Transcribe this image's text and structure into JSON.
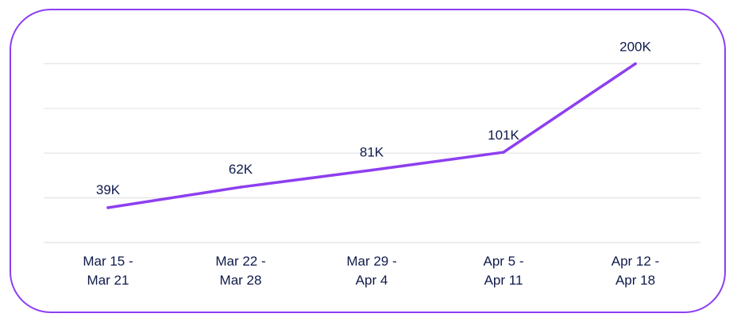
{
  "chart_data": {
    "type": "line",
    "title": "",
    "xlabel": "",
    "ylabel": "",
    "categories": [
      [
        "Mar 15 -",
        "Mar 21"
      ],
      [
        "Mar 22 -",
        "Mar 28"
      ],
      [
        "Mar 29 -",
        "Apr 4"
      ],
      [
        "Apr 5 -",
        "Apr 11"
      ],
      [
        "Apr 12 -",
        "Apr 18"
      ]
    ],
    "values": [
      39000,
      62000,
      81000,
      101000,
      200000
    ],
    "data_labels": [
      "39K",
      "62K",
      "81K",
      "101K",
      "200K"
    ],
    "ylim": [
      0,
      250000
    ],
    "gridlines": [
      0,
      50000,
      100000,
      150000,
      200000,
      250000
    ],
    "grid": true,
    "line_color": "#8d3ff0",
    "border_color": "#8d3ff0",
    "text_color": "#0f1a4b"
  }
}
